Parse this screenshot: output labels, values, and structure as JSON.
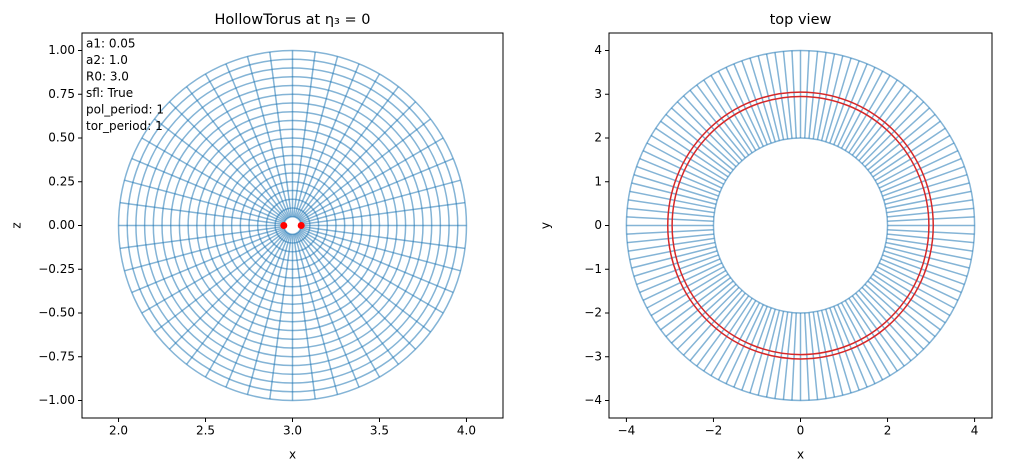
{
  "chart_data": [
    {
      "type": "mesh",
      "title": "HollowTorus at η₃ = 0",
      "xlabel": "x",
      "ylabel": "z",
      "annotations": [
        "a1: 0.05",
        "a2: 1.0",
        "R0: 3.0",
        "sfl: True",
        "pol_period: 1",
        "tor_period: 1"
      ],
      "center": [
        3,
        0
      ],
      "radii": [
        0.05,
        0.1,
        0.15,
        0.2,
        0.25,
        0.3,
        0.35,
        0.4,
        0.45,
        0.5,
        0.55,
        0.6,
        0.65,
        0.7,
        0.75,
        0.8,
        0.85,
        0.9,
        0.95,
        1.0
      ],
      "theta_count": 48,
      "color": "#1f77b4",
      "points": {
        "x": [
          2.95,
          3.05
        ],
        "y": [
          0,
          0
        ],
        "color": "#ff0000"
      },
      "xlim": [
        1.79,
        4.21
      ],
      "ylim": [
        -1.1,
        1.1
      ],
      "xticks": [
        {
          "value": 2,
          "label": "2.0"
        },
        {
          "value": 2.5,
          "label": "2.5"
        },
        {
          "value": 3,
          "label": "3.0"
        },
        {
          "value": 3.5,
          "label": "3.5"
        },
        {
          "value": 4,
          "label": "4.0"
        }
      ],
      "yticks": [
        {
          "value": -1,
          "label": "−1.00"
        },
        {
          "value": -0.75,
          "label": "−0.75"
        },
        {
          "value": -0.5,
          "label": "−0.50"
        },
        {
          "value": -0.25,
          "label": "−0.25"
        },
        {
          "value": 0,
          "label": "0.00"
        },
        {
          "value": 0.25,
          "label": "0.25"
        },
        {
          "value": 0.5,
          "label": "0.50"
        },
        {
          "value": 0.75,
          "label": "0.75"
        },
        {
          "value": 1,
          "label": "1.00"
        }
      ]
    },
    {
      "type": "mesh",
      "title": "top view",
      "xlabel": "x",
      "ylabel": "y",
      "center": [
        0,
        0
      ],
      "radii": [
        2,
        4
      ],
      "theta_count": 128,
      "color": "#1f77b4",
      "circles": {
        "radii": [
          2.95,
          3.05
        ],
        "color": "#d62728"
      },
      "xlim": [
        -4.4,
        4.4
      ],
      "ylim": [
        -4.4,
        4.4
      ],
      "xticks": [
        {
          "value": -4,
          "label": "−4"
        },
        {
          "value": -2,
          "label": "−2"
        },
        0,
        2,
        4
      ],
      "yticks": [
        {
          "value": -4,
          "label": "−4"
        },
        {
          "value": -3,
          "label": "−3"
        },
        {
          "value": -2,
          "label": "−2"
        },
        {
          "value": -1,
          "label": "−1"
        },
        0,
        1,
        2,
        3,
        4
      ]
    }
  ]
}
